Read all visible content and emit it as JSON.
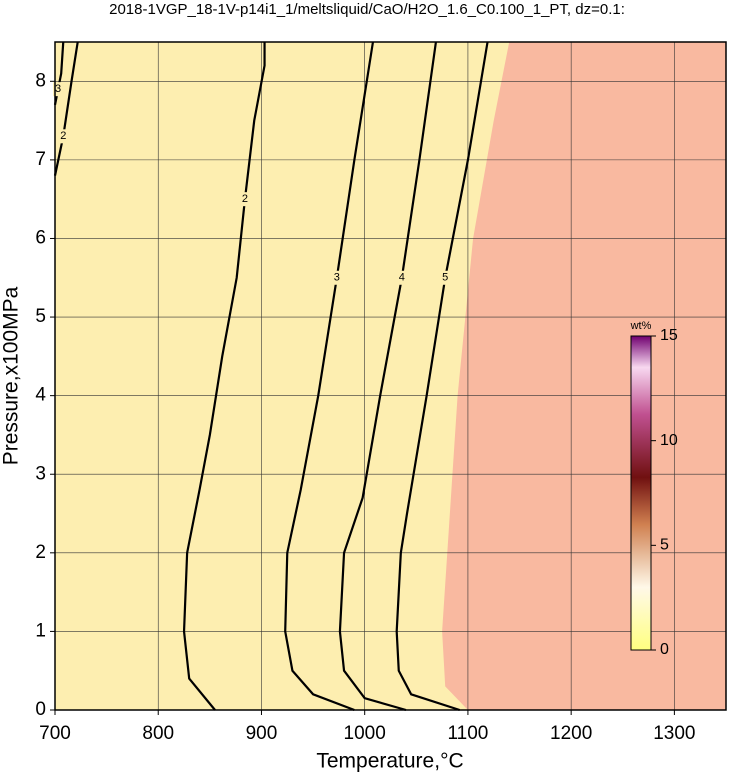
{
  "chart_data": {
    "type": "contour",
    "title": "2018-1VGP_18-1V-p14i1_1/meltsliquid/CaO/H2O_1.6_C0.100_1_PT, dz=0.1:",
    "x_label": "Temperature,°C",
    "y_label": "Pressure,x100MPa",
    "xlim": [
      700,
      1350
    ],
    "ylim": [
      0,
      8.5
    ],
    "xticks": [
      700,
      800,
      900,
      1000,
      1100,
      1200,
      1300
    ],
    "yticks": [
      0,
      1,
      2,
      3,
      4,
      5,
      6,
      7,
      8
    ],
    "grid": true,
    "inside_color": "#fdeeb0",
    "outside_color": "#f9b9a0",
    "region_edge": {
      "x": [
        1100,
        1078,
        1075,
        1080,
        1090,
        1105,
        1125,
        1140
      ],
      "y": [
        0,
        0.3,
        1,
        2,
        4,
        6,
        7.5,
        8.5
      ]
    },
    "contours": [
      {
        "level": 2,
        "x": [
          855,
          830,
          825,
          828,
          840,
          850,
          862,
          876,
          884,
          893,
          903,
          903
        ],
        "y": [
          0,
          0.4,
          1,
          2,
          2.8,
          3.5,
          4.5,
          5.5,
          6.5,
          7.5,
          8.2,
          8.5
        ]
      },
      {
        "level": 3,
        "x": [
          990,
          950,
          930,
          923,
          925,
          938,
          955,
          973,
          990,
          1008
        ],
        "y": [
          0,
          0.2,
          0.5,
          1,
          2,
          2.8,
          4,
          5.5,
          7,
          8.5
        ]
      },
      {
        "level": 4,
        "x": [
          1040,
          1000,
          980,
          976,
          980,
          998,
          1015,
          1036,
          1053,
          1069
        ],
        "y": [
          0,
          0.15,
          0.5,
          1,
          2,
          2.7,
          4,
          5.5,
          7,
          8.5
        ]
      },
      {
        "level": 5,
        "x": [
          1092,
          1045,
          1033,
          1031,
          1035,
          1041,
          1060,
          1078,
          1100,
          1119
        ],
        "y": [
          0,
          0.2,
          0.5,
          1,
          2,
          2.5,
          4,
          5.5,
          7,
          8.5
        ]
      },
      {
        "level": 3,
        "x": [
          708,
          706,
          703,
          700
        ],
        "y": [
          8.5,
          8.1,
          7.9,
          7.7
        ]
      },
      {
        "level": 2,
        "x": [
          722,
          716,
          708,
          700
        ],
        "y": [
          8.5,
          8.0,
          7.3,
          6.8
        ]
      }
    ],
    "colorbar": {
      "label": "wt%",
      "lim": [
        0,
        15
      ],
      "ticks": [
        0,
        5,
        10,
        15
      ]
    }
  }
}
